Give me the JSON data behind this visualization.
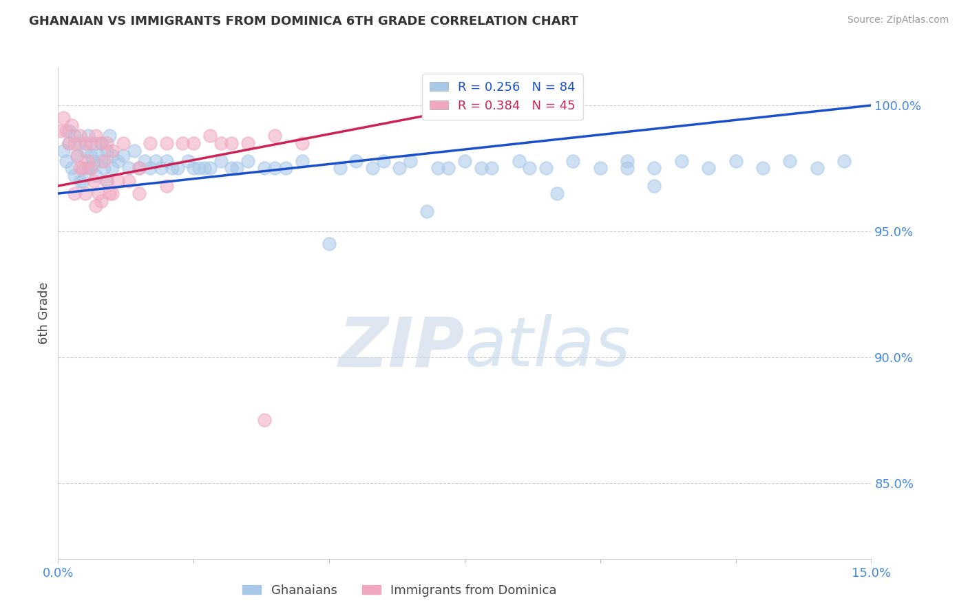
{
  "title": "GHANAIAN VS IMMIGRANTS FROM DOMINICA 6TH GRADE CORRELATION CHART",
  "source_text": "Source: ZipAtlas.com",
  "ylabel": "6th Grade",
  "watermark_zip": "ZIP",
  "watermark_atlas": "atlas",
  "x_min": 0.0,
  "x_max": 15.0,
  "y_min": 82.0,
  "y_max": 101.5,
  "y_ticks": [
    85.0,
    90.0,
    95.0,
    100.0
  ],
  "x_tick_positions": [
    0.0,
    15.0
  ],
  "x_tick_labels": [
    "0.0%",
    "15.0%"
  ],
  "blue_color": "#a8c8e8",
  "pink_color": "#f0a8c0",
  "blue_line_color": "#1a4fcc",
  "pink_line_color": "#cc2255",
  "axis_tick_color": "#4488dd",
  "legend_blue_R": 0.256,
  "legend_blue_N": 84,
  "legend_pink_R": 0.384,
  "legend_pink_N": 45,
  "blue_scatter_x": [
    0.1,
    0.15,
    0.2,
    0.2,
    0.25,
    0.3,
    0.3,
    0.35,
    0.4,
    0.4,
    0.5,
    0.5,
    0.55,
    0.6,
    0.6,
    0.65,
    0.7,
    0.7,
    0.75,
    0.8,
    0.8,
    0.85,
    0.9,
    0.9,
    0.95,
    1.0,
    1.0,
    1.1,
    1.2,
    1.3,
    1.4,
    1.5,
    1.6,
    1.7,
    1.8,
    1.9,
    2.0,
    2.1,
    2.2,
    2.4,
    2.5,
    2.7,
    2.8,
    3.0,
    3.2,
    3.5,
    3.8,
    4.0,
    4.5,
    5.0,
    5.5,
    5.8,
    6.0,
    6.3,
    6.5,
    7.0,
    7.5,
    8.0,
    8.5,
    9.0,
    9.5,
    10.0,
    10.5,
    11.0,
    11.5,
    12.0,
    12.5,
    13.0,
    13.5,
    14.0,
    14.5,
    3.3,
    2.6,
    4.2,
    5.2,
    6.8,
    7.8,
    8.7,
    9.2,
    10.5,
    11.0,
    7.2,
    0.45,
    0.55
  ],
  "blue_scatter_y": [
    98.2,
    97.8,
    98.5,
    99.0,
    97.5,
    98.8,
    97.2,
    98.0,
    98.5,
    97.0,
    98.2,
    97.5,
    98.8,
    97.5,
    98.0,
    97.8,
    98.5,
    97.2,
    98.0,
    97.8,
    98.5,
    97.5,
    98.2,
    97.0,
    98.8,
    97.5,
    98.0,
    97.8,
    98.0,
    97.5,
    98.2,
    97.5,
    97.8,
    97.5,
    97.8,
    97.5,
    97.8,
    97.5,
    97.5,
    97.8,
    97.5,
    97.5,
    97.5,
    97.8,
    97.5,
    97.8,
    97.5,
    97.5,
    97.8,
    94.5,
    97.8,
    97.5,
    97.8,
    97.5,
    97.8,
    97.5,
    97.8,
    97.5,
    97.8,
    97.5,
    97.8,
    97.5,
    97.8,
    97.5,
    97.8,
    97.5,
    97.8,
    97.5,
    97.8,
    97.5,
    97.8,
    97.5,
    97.5,
    97.5,
    97.5,
    95.8,
    97.5,
    97.5,
    96.5,
    97.5,
    96.8,
    97.5,
    97.0,
    97.5
  ],
  "pink_scatter_x": [
    0.05,
    0.1,
    0.15,
    0.2,
    0.25,
    0.3,
    0.35,
    0.4,
    0.45,
    0.5,
    0.55,
    0.6,
    0.65,
    0.7,
    0.75,
    0.8,
    0.85,
    0.9,
    0.95,
    1.0,
    1.1,
    1.2,
    1.3,
    1.5,
    1.7,
    2.0,
    2.3,
    2.8,
    3.0,
    3.2,
    3.5,
    4.0,
    4.5,
    0.3,
    0.5,
    0.7,
    0.9,
    1.0,
    1.5,
    2.0,
    0.4,
    0.6,
    0.8,
    3.8,
    2.5
  ],
  "pink_scatter_y": [
    99.0,
    99.5,
    99.0,
    98.5,
    99.2,
    98.5,
    98.0,
    98.8,
    97.5,
    98.5,
    97.8,
    98.5,
    97.0,
    98.8,
    96.5,
    98.5,
    97.8,
    98.5,
    96.5,
    98.2,
    97.0,
    98.5,
    97.0,
    97.5,
    98.5,
    98.5,
    98.5,
    98.8,
    98.5,
    98.5,
    98.5,
    98.8,
    98.5,
    96.5,
    96.5,
    96.0,
    97.0,
    96.5,
    96.5,
    96.8,
    97.5,
    97.5,
    96.2,
    87.5,
    98.5
  ],
  "blue_trend_x0": 0.0,
  "blue_trend_y0": 96.5,
  "blue_trend_x1": 15.0,
  "blue_trend_y1": 100.0,
  "pink_trend_x0": 0.0,
  "pink_trend_y0": 96.8,
  "pink_trend_x1": 8.5,
  "pink_trend_y1": 100.3
}
